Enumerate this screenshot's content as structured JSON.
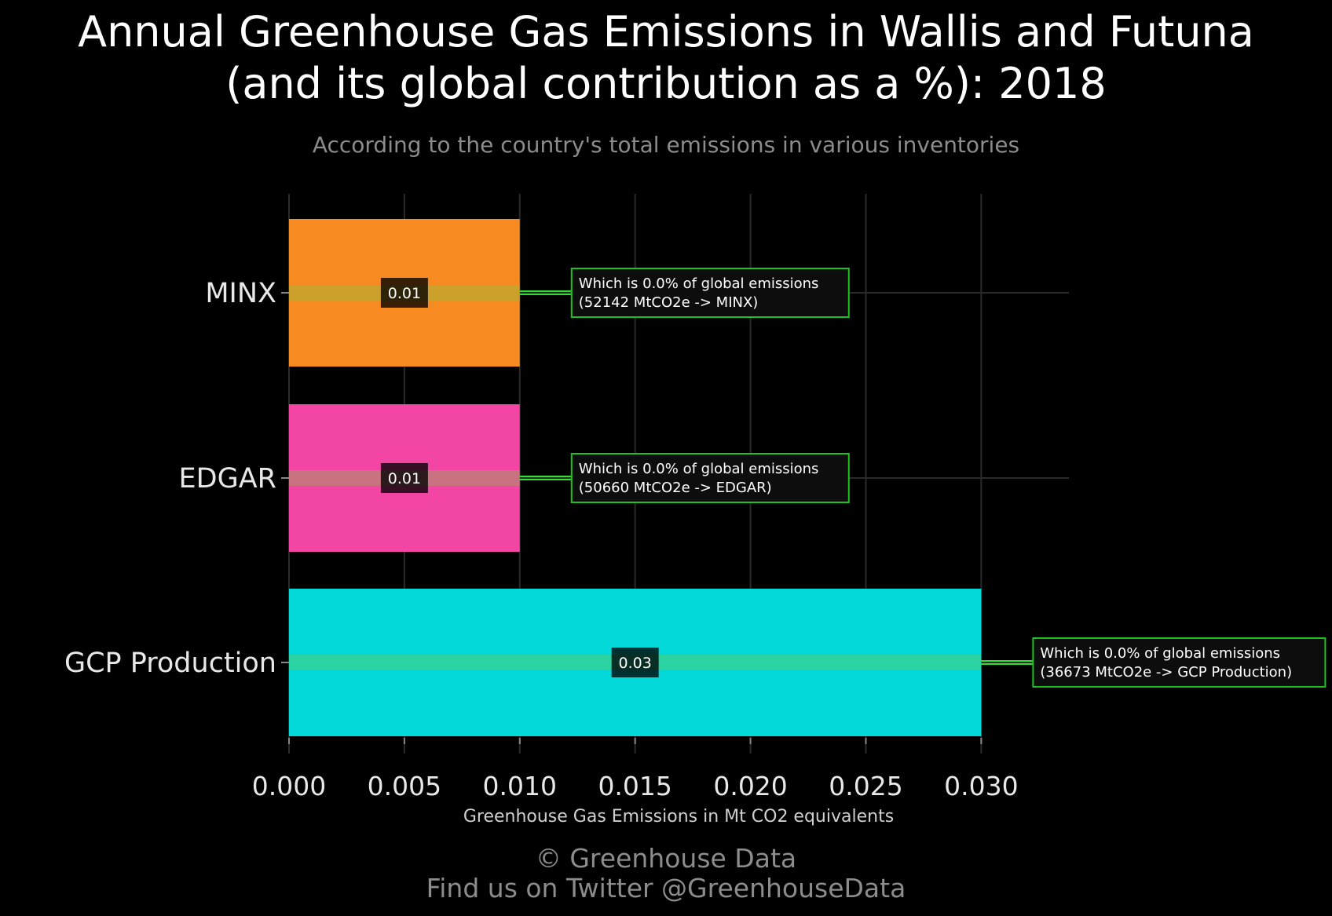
{
  "title_line1": "Annual Greenhouse Gas Emissions in Wallis and Futuna",
  "title_line2": "(and its global contribution as a %): 2018",
  "subtitle": "According to the country's total emissions in various inventories",
  "footer_line1": "© Greenhouse Data",
  "footer_line2": "Find us on Twitter @GreenhouseData",
  "colors": {
    "background": "#000000",
    "grid": "#2a2a2a",
    "annotation_border": "#1ec21e",
    "annotation_bg": "#0d0d0d"
  },
  "chart_data": {
    "type": "bar",
    "orientation": "horizontal",
    "categories": [
      "MINX",
      "EDGAR",
      "GCP Production"
    ],
    "values": [
      0.01,
      0.01,
      0.03
    ],
    "value_labels": [
      "0.01",
      "0.01",
      "0.03"
    ],
    "bar_colors": [
      "#f88a22",
      "#f346a4",
      "#03d9d9"
    ],
    "xlabel": "Greenhouse Gas Emissions in Mt CO2 equivalents",
    "ylabel": "",
    "xlim": [
      0,
      0.0338
    ],
    "x_ticks": [
      0.0,
      0.005,
      0.01,
      0.015,
      0.02,
      0.025,
      0.03
    ],
    "x_tick_labels": [
      "0.000",
      "0.005",
      "0.010",
      "0.015",
      "0.020",
      "0.025",
      "0.030"
    ],
    "grid": true,
    "annotations": [
      {
        "line1": "Which is 0.0% of global emissions",
        "line2": "(52142 MtCO2e -> MINX)"
      },
      {
        "line1": "Which is 0.0% of global emissions",
        "line2": "(50660 MtCO2e -> EDGAR)"
      },
      {
        "line1": "Which is 0.0% of global emissions",
        "line2": "(36673 MtCO2e -> GCP Production)"
      }
    ]
  }
}
